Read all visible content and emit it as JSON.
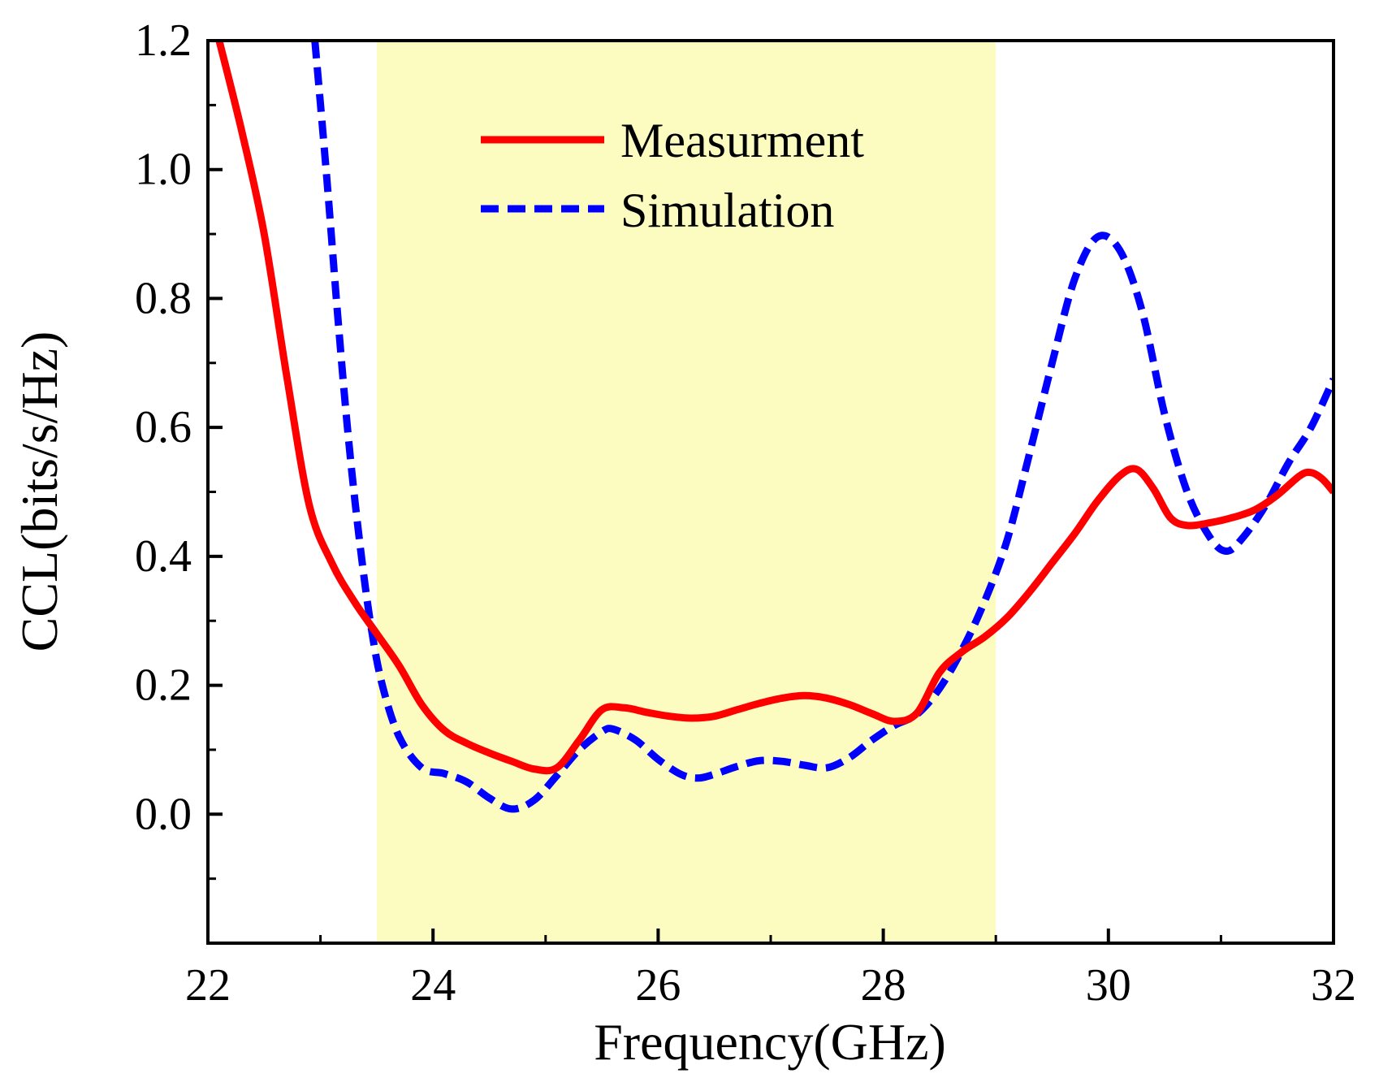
{
  "chart_data": {
    "type": "line",
    "title": "",
    "xlabel": "Frequency(GHz)",
    "ylabel": "CCL(bits/s/Hz)",
    "xlim": [
      22,
      32
    ],
    "ylim": [
      -0.2,
      1.2
    ],
    "xticks": [
      22,
      24,
      26,
      28,
      30,
      32
    ],
    "xtick_labels": [
      "22",
      "24",
      "26",
      "28",
      "30",
      "32"
    ],
    "yticks": [
      0.0,
      0.2,
      0.4,
      0.6,
      0.8,
      1.0,
      1.2
    ],
    "ytick_labels": [
      "0.0",
      "0.2",
      "0.4",
      "0.6",
      "0.8",
      "1.0",
      "1.2"
    ],
    "grid": false,
    "legend_position": "top-center",
    "highlight_band": {
      "x_range": [
        23.5,
        29.0
      ],
      "color": "#fcfcc0"
    },
    "series": [
      {
        "name": "Measurment",
        "style": "solid",
        "color": "#ff0000",
        "points": [
          [
            22.1,
            1.2
          ],
          [
            22.3,
            1.06
          ],
          [
            22.5,
            0.9
          ],
          [
            22.7,
            0.68
          ],
          [
            22.9,
            0.48
          ],
          [
            23.1,
            0.39
          ],
          [
            23.3,
            0.33
          ],
          [
            23.5,
            0.28
          ],
          [
            23.7,
            0.23
          ],
          [
            23.9,
            0.17
          ],
          [
            24.1,
            0.13
          ],
          [
            24.3,
            0.11
          ],
          [
            24.5,
            0.095
          ],
          [
            24.7,
            0.082
          ],
          [
            24.9,
            0.07
          ],
          [
            25.1,
            0.072
          ],
          [
            25.3,
            0.115
          ],
          [
            25.5,
            0.162
          ],
          [
            25.7,
            0.165
          ],
          [
            25.9,
            0.158
          ],
          [
            26.1,
            0.152
          ],
          [
            26.3,
            0.149
          ],
          [
            26.5,
            0.152
          ],
          [
            26.7,
            0.162
          ],
          [
            26.9,
            0.172
          ],
          [
            27.1,
            0.18
          ],
          [
            27.3,
            0.184
          ],
          [
            27.5,
            0.18
          ],
          [
            27.7,
            0.17
          ],
          [
            27.9,
            0.156
          ],
          [
            28.1,
            0.144
          ],
          [
            28.3,
            0.157
          ],
          [
            28.5,
            0.22
          ],
          [
            28.7,
            0.252
          ],
          [
            28.9,
            0.275
          ],
          [
            29.1,
            0.305
          ],
          [
            29.3,
            0.345
          ],
          [
            29.5,
            0.39
          ],
          [
            29.7,
            0.435
          ],
          [
            29.9,
            0.485
          ],
          [
            30.1,
            0.525
          ],
          [
            30.25,
            0.535
          ],
          [
            30.4,
            0.505
          ],
          [
            30.55,
            0.46
          ],
          [
            30.7,
            0.448
          ],
          [
            30.9,
            0.452
          ],
          [
            31.1,
            0.46
          ],
          [
            31.3,
            0.472
          ],
          [
            31.5,
            0.495
          ],
          [
            31.7,
            0.525
          ],
          [
            31.8,
            0.53
          ],
          [
            31.9,
            0.52
          ],
          [
            32.0,
            0.5
          ]
        ]
      },
      {
        "name": "Simulation",
        "style": "dashed",
        "color": "#0000ff",
        "points": [
          [
            22.95,
            1.2
          ],
          [
            23.05,
            1.0
          ],
          [
            23.15,
            0.78
          ],
          [
            23.25,
            0.58
          ],
          [
            23.35,
            0.42
          ],
          [
            23.45,
            0.29
          ],
          [
            23.55,
            0.2
          ],
          [
            23.7,
            0.12
          ],
          [
            23.9,
            0.072
          ],
          [
            24.1,
            0.063
          ],
          [
            24.3,
            0.05
          ],
          [
            24.5,
            0.025
          ],
          [
            24.7,
            0.008
          ],
          [
            24.9,
            0.022
          ],
          [
            25.1,
            0.06
          ],
          [
            25.3,
            0.1
          ],
          [
            25.5,
            0.128
          ],
          [
            25.6,
            0.132
          ],
          [
            25.8,
            0.115
          ],
          [
            26.0,
            0.085
          ],
          [
            26.2,
            0.062
          ],
          [
            26.35,
            0.056
          ],
          [
            26.5,
            0.062
          ],
          [
            26.7,
            0.074
          ],
          [
            26.9,
            0.083
          ],
          [
            27.1,
            0.082
          ],
          [
            27.3,
            0.076
          ],
          [
            27.5,
            0.072
          ],
          [
            27.7,
            0.088
          ],
          [
            27.9,
            0.115
          ],
          [
            28.1,
            0.138
          ],
          [
            28.3,
            0.155
          ],
          [
            28.5,
            0.195
          ],
          [
            28.7,
            0.255
          ],
          [
            28.9,
            0.33
          ],
          [
            29.1,
            0.425
          ],
          [
            29.3,
            0.56
          ],
          [
            29.5,
            0.7
          ],
          [
            29.7,
            0.83
          ],
          [
            29.9,
            0.895
          ],
          [
            30.1,
            0.875
          ],
          [
            30.3,
            0.78
          ],
          [
            30.5,
            0.62
          ],
          [
            30.7,
            0.5
          ],
          [
            30.9,
            0.43
          ],
          [
            31.05,
            0.408
          ],
          [
            31.2,
            0.43
          ],
          [
            31.4,
            0.48
          ],
          [
            31.6,
            0.545
          ],
          [
            31.8,
            0.6
          ],
          [
            32.0,
            0.675
          ]
        ]
      }
    ]
  }
}
